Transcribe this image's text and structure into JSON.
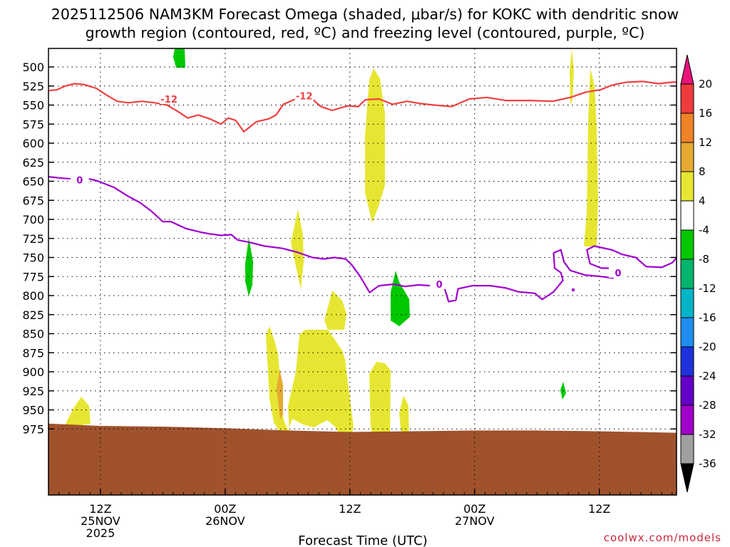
{
  "title": {
    "line1": "2025112506 NAM3KM Forecast Omega (shaded, μbar/s) for KOKC with dendritic snow",
    "line2": "growth region (contoured, red, ºC) and freezing level (contoured, purple, ºC)"
  },
  "credit": "coolwx.com/models",
  "colors": {
    "dgz_contour": "#f04040",
    "freezing_contour": "#a000d0",
    "terrain": "#a0522d",
    "grid": "#000000"
  },
  "chart_data": {
    "type": "heatmap",
    "title": "2025112506 NAM3KM Forecast Omega (shaded, μbar/s) for KOKC with dendritic snow growth region (contoured, red, ºC) and freezing level (contoured, purple, ºC)",
    "xlabel": "Forecast Time (UTC)",
    "ylabel": "",
    "x_unit": "forecast hour from 2025-11-25 06Z",
    "xlim": [
      1,
      51
    ],
    "ylim": [
      987,
      478
    ],
    "y_inverted": true,
    "y_ticks": [
      500,
      525,
      550,
      575,
      600,
      625,
      650,
      675,
      700,
      725,
      750,
      775,
      800,
      825,
      850,
      875,
      900,
      925,
      950,
      975
    ],
    "x_ticks": [
      {
        "hour": 6,
        "lines": [
          "12Z",
          "25NOV",
          "2025"
        ]
      },
      {
        "hour": 18,
        "lines": [
          "00Z",
          "26NOV"
        ]
      },
      {
        "hour": 30,
        "lines": [
          "12Z"
        ]
      },
      {
        "hour": 42,
        "lines": [
          "00Z",
          "27NOV"
        ]
      },
      {
        "hour": 54,
        "lines": [
          "12Z"
        ]
      }
    ],
    "colorbar": {
      "levels": [
        "20",
        "16",
        "12",
        "8",
        "4",
        "-4",
        "-8",
        "-12",
        "-16",
        "-20",
        "-24",
        "-28",
        "-32",
        "-36"
      ],
      "colors": [
        "#e8147a",
        "#f03c3c",
        "#f08228",
        "#e6aa32",
        "#e6e632",
        "#ffffff",
        "#00c800",
        "#00b46e",
        "#00b4c8",
        "#1e8cf0",
        "#1e32dc",
        "#6400c8",
        "#a000c8",
        "#a0a0a0",
        "#000000"
      ]
    },
    "series": [
      {
        "name": "DGZ -12 °C isotherm",
        "color": "#f04040",
        "label": "-12",
        "label_points": [
          [
            12.6,
            542
          ],
          [
            25.6,
            538
          ]
        ],
        "points": [
          [
            1,
            531
          ],
          [
            1.8,
            530
          ],
          [
            2.6,
            525
          ],
          [
            3.5,
            522
          ],
          [
            4.4,
            523
          ],
          [
            5.6,
            528
          ],
          [
            6.6,
            537
          ],
          [
            7.6,
            545
          ],
          [
            8.7,
            547
          ],
          [
            10,
            545
          ],
          [
            11.2,
            547
          ],
          [
            12.4,
            550
          ],
          [
            13.4,
            558
          ],
          [
            14.4,
            567
          ],
          [
            15.4,
            563
          ],
          [
            16.5,
            568
          ],
          [
            17.6,
            575
          ],
          [
            18.3,
            567
          ],
          [
            19,
            570
          ],
          [
            19.8,
            585
          ],
          [
            21,
            572
          ],
          [
            22.2,
            568
          ],
          [
            22.9,
            563
          ],
          [
            23.6,
            549
          ],
          [
            24.8,
            542
          ],
          [
            26.2,
            540
          ],
          [
            27.2,
            552
          ],
          [
            28.3,
            557
          ],
          [
            29.8,
            551
          ],
          [
            30.8,
            552
          ],
          [
            31.5,
            543
          ],
          [
            32.8,
            542
          ],
          [
            34.1,
            549
          ],
          [
            35.5,
            545
          ],
          [
            36.8,
            548
          ],
          [
            38.1,
            550
          ],
          [
            39.8,
            552
          ],
          [
            41.5,
            542
          ],
          [
            43.2,
            540
          ],
          [
            45,
            544
          ],
          [
            47.3,
            544
          ],
          [
            49.5,
            545
          ],
          [
            51.2,
            540
          ],
          [
            52.7,
            533
          ],
          [
            54.1,
            530
          ],
          [
            55.2,
            524
          ],
          [
            56.6,
            520
          ],
          [
            58.2,
            519
          ],
          [
            59.7,
            522
          ],
          [
            61,
            520
          ],
          [
            61.6,
            520
          ]
        ]
      },
      {
        "name": "Freezing level 0 °C",
        "color": "#a000d0",
        "label": "0",
        "label_points": [
          [
            4,
            648
          ],
          [
            38.6,
            785
          ],
          [
            55.8,
            770
          ]
        ],
        "points": [
          [
            1,
            644
          ],
          [
            2.3,
            646
          ],
          [
            3.4,
            647
          ],
          [
            4.7,
            646
          ],
          [
            5.8,
            650
          ],
          [
            7.3,
            658
          ],
          [
            8.7,
            670
          ],
          [
            9.8,
            678
          ],
          [
            10.8,
            688
          ],
          [
            12,
            703
          ],
          [
            12.8,
            703
          ],
          [
            14.2,
            712
          ],
          [
            15.7,
            717
          ],
          [
            16.5,
            719
          ],
          [
            17.6,
            721
          ],
          [
            18.6,
            720
          ],
          [
            19.2,
            727
          ],
          [
            20.3,
            730
          ],
          [
            21.8,
            735
          ],
          [
            23.5,
            738
          ],
          [
            24.9,
            743
          ],
          [
            26.4,
            750
          ],
          [
            27.5,
            752
          ],
          [
            28.5,
            750
          ],
          [
            29.6,
            752
          ],
          [
            30.2,
            760
          ],
          [
            31,
            775
          ],
          [
            31.9,
            796
          ],
          [
            32.8,
            787
          ],
          [
            34.2,
            785
          ],
          [
            35.3,
            788
          ],
          [
            36.6,
            786
          ],
          [
            37.8,
            787
          ],
          [
            38.4,
            787
          ],
          [
            39.1,
            790
          ],
          [
            39.5,
            808
          ],
          [
            40.2,
            806
          ],
          [
            40.4,
            791
          ],
          [
            41.8,
            787
          ],
          [
            43.5,
            787
          ],
          [
            45,
            790
          ],
          [
            46.2,
            795
          ],
          [
            47.8,
            797
          ],
          [
            48.5,
            805
          ],
          [
            49.6,
            795
          ],
          [
            50.5,
            780
          ],
          [
            50.3,
            770
          ],
          [
            49.7,
            764
          ],
          [
            49.6,
            744
          ],
          [
            50.3,
            740
          ],
          [
            50.6,
            756
          ],
          [
            51.2,
            767
          ],
          [
            52.6,
            773
          ],
          [
            54.2,
            775
          ],
          [
            55.3,
            777
          ],
          [
            55.8,
            768
          ],
          [
            55.5,
            764
          ],
          [
            54.2,
            764
          ],
          [
            53.1,
            758
          ],
          [
            52.8,
            740
          ],
          [
            53.5,
            735
          ],
          [
            55.2,
            740
          ],
          [
            56.2,
            746
          ],
          [
            57.5,
            750
          ],
          [
            58.5,
            762
          ],
          [
            60,
            763
          ],
          [
            61,
            757
          ],
          [
            61.6,
            748
          ]
        ]
      }
    ],
    "omega_shading": [
      {
        "level": "4 to 8",
        "color": "#e6e632",
        "centers_hour_hPa": [
          [
            4.4,
            878
          ],
          [
            19.4,
            673
          ],
          [
            26,
            810
          ],
          [
            28.4,
            738
          ],
          [
            30.6,
            880
          ],
          [
            31.4,
            570
          ],
          [
            33.3,
            885
          ],
          [
            53.7,
            520
          ],
          [
            55.1,
            580
          ]
        ]
      },
      {
        "level": "8 to 12",
        "color": "#e6aa32",
        "centers_hour_hPa": [
          [
            22.8,
            850
          ]
        ]
      },
      {
        "level": "-4 to -8",
        "color": "#00c800",
        "centers_hour_hPa": [
          [
            12.1,
            487
          ],
          [
            18.1,
            685
          ],
          [
            32.3,
            728
          ],
          [
            50.8,
            846
          ]
        ]
      }
    ],
    "terrain": {
      "color": "#a0522d",
      "surface_hPa": [
        [
          1,
          968
        ],
        [
          6,
          971
        ],
        [
          12,
          972
        ],
        [
          18,
          974
        ],
        [
          24,
          977
        ],
        [
          30,
          979
        ],
        [
          36,
          978
        ],
        [
          42,
          977
        ],
        [
          48,
          977
        ],
        [
          54,
          978
        ],
        [
          61.6,
          980
        ]
      ]
    }
  }
}
